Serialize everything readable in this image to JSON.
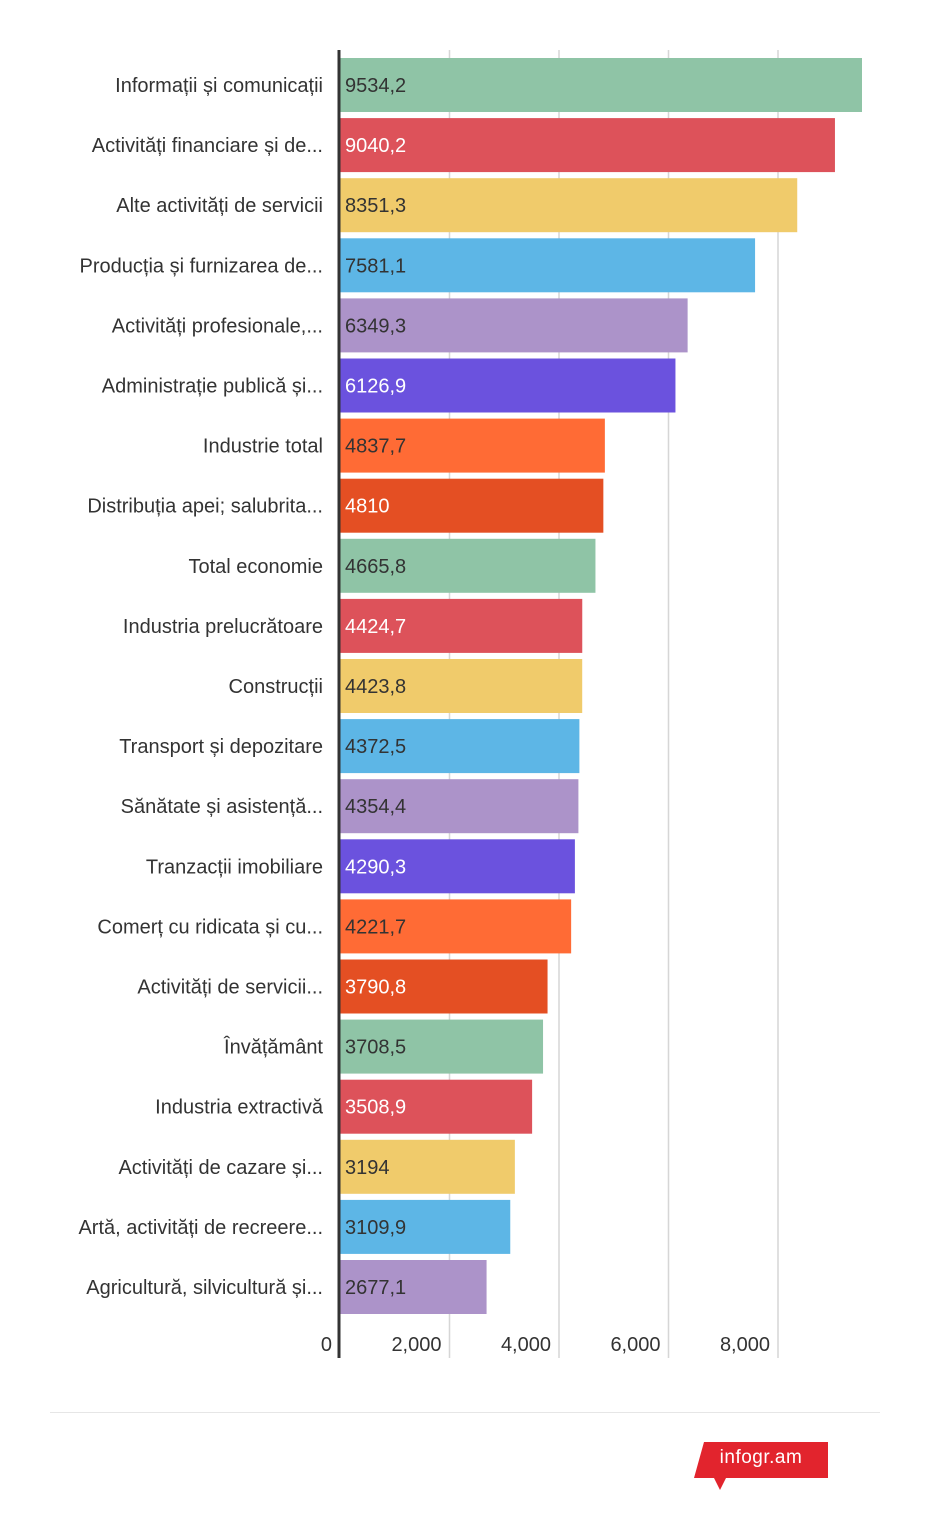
{
  "chart_data": {
    "type": "bar",
    "orientation": "horizontal",
    "categories": [
      "Informații și comunicații",
      "Activități financiare și de...",
      "Alte activități de servicii",
      "Producția și furnizarea de...",
      "Activități profesionale,...",
      "Administrație publică și...",
      "Industrie total",
      "Distribuția apei; salubrita...",
      "Total economie",
      "Industria prelucrătoare",
      "Construcții",
      "Transport și depozitare",
      "Sănătate și asistență...",
      "Tranzacții imobiliare",
      "Comerț cu ridicata și cu...",
      "Activități de servicii...",
      "Învățământ",
      "Industria extractivă",
      "Activități de cazare și...",
      "Artă, activități de recreere...",
      "Agricultură, silvicultură și..."
    ],
    "values": [
      9534.2,
      9040.2,
      8351.3,
      7581.1,
      6349.3,
      6126.9,
      4837.7,
      4810,
      4665.8,
      4424.7,
      4423.8,
      4372.5,
      4354.4,
      4290.3,
      4221.7,
      3790.8,
      3708.5,
      3508.9,
      3194,
      3109.9,
      2677.1
    ],
    "value_labels": [
      "9534,2",
      "9040,2",
      "8351,3",
      "7581,1",
      "6349,3",
      "6126,9",
      "4837,7",
      "4810",
      "4665,8",
      "4424,7",
      "4423,8",
      "4372,5",
      "4354,4",
      "4290,3",
      "4221,7",
      "3790,8",
      "3708,5",
      "3508,9",
      "3194",
      "3109,9",
      "2677,1"
    ],
    "colors": [
      "#8fc4a6",
      "#dd525a",
      "#f0cb6b",
      "#5db6e6",
      "#ac93c9",
      "#6b52de",
      "#ff6b35",
      "#e44f23",
      "#8fc4a6",
      "#dd525a",
      "#f0cb6b",
      "#5db6e6",
      "#ac93c9",
      "#6b52de",
      "#ff6b35",
      "#e44f23",
      "#8fc4a6",
      "#dd525a",
      "#f0cb6b",
      "#5db6e6",
      "#ac93c9"
    ],
    "label_text_colors": [
      "#333333",
      "#ffffff",
      "#333333",
      "#333333",
      "#333333",
      "#ffffff",
      "#333333",
      "#ffffff",
      "#333333",
      "#ffffff",
      "#333333",
      "#333333",
      "#333333",
      "#ffffff",
      "#333333",
      "#ffffff",
      "#333333",
      "#ffffff",
      "#333333",
      "#333333",
      "#333333"
    ],
    "x_ticks": [
      0,
      2000,
      4000,
      6000,
      8000
    ],
    "x_tick_labels": [
      "0",
      "2,000",
      "4,000",
      "6,000",
      "8,000"
    ],
    "xlim": [
      0,
      9600
    ],
    "grid": true,
    "legend": "none",
    "title": "",
    "xlabel": "",
    "ylabel": ""
  },
  "footer": {
    "logo_text": "infogr.am",
    "logo_color": "#e2242d"
  }
}
